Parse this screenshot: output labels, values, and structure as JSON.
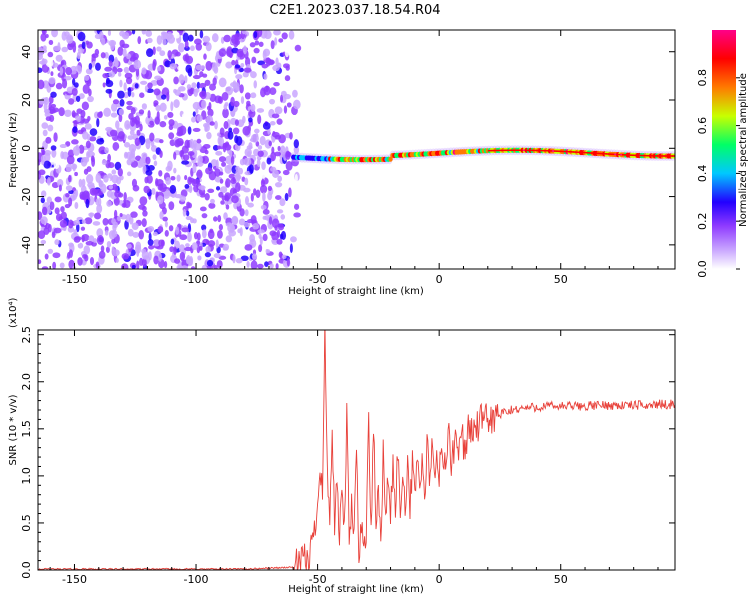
{
  "title": "C2E1.2023.037.18.54.R04",
  "chart_data": [
    {
      "type": "heatmap",
      "xlabel": "Height of straight line (km)",
      "ylabel": "Frequency (Hz)",
      "xlim": [
        -165,
        97
      ],
      "ylim": [
        -50,
        49
      ],
      "x_ticks": [
        -150,
        -100,
        -50,
        0,
        50
      ],
      "y_ticks": [
        -40,
        -20,
        0,
        20,
        40
      ],
      "colorbar": {
        "label": "Normalized spectral amplitude",
        "range": [
          0.0,
          1.0
        ],
        "ticks": [
          "0.0",
          "0.2",
          "0.4",
          "0.6",
          "0.8"
        ],
        "colors": [
          "#ffffff",
          "#c9a6ff",
          "#8f3bff",
          "#2200ff",
          "#00c8ff",
          "#00ff66",
          "#c8ff00",
          "#ff7a00",
          "#ff0000",
          "#ff0088"
        ]
      },
      "regions": [
        {
          "description": "broadband noise",
          "x_range": [
            -165,
            -62
          ],
          "freq_range": [
            -50,
            49
          ],
          "amplitude": [
            0.05,
            0.3
          ]
        },
        {
          "description": "narrow echo band",
          "x_range": [
            -60,
            97
          ],
          "freq_range": [
            -6,
            2
          ],
          "amplitude": [
            0.3,
            1.0
          ]
        }
      ]
    },
    {
      "type": "line",
      "xlabel": "Height of straight line (km)",
      "ylabel": "SNR (10 * v/v)",
      "y_multiplier": "(x10⁴)",
      "xlim": [
        -165,
        97
      ],
      "ylim": [
        0,
        2.55
      ],
      "x_ticks": [
        -150,
        -100,
        -50,
        0,
        50
      ],
      "y_ticks": [
        "0.0",
        "0.5",
        "1.0",
        "1.5",
        "2.0",
        "2.5"
      ],
      "series": [
        {
          "color": "#e8413a",
          "x": [
            -165,
            -120,
            -80,
            -60,
            -54,
            -52,
            -50,
            -49,
            -48,
            -47,
            -46,
            -45,
            -44,
            -43,
            -42,
            -41,
            -40,
            -39,
            -38,
            -37,
            -36,
            -35,
            -34,
            -33,
            -32,
            -31,
            -30,
            -29,
            -28,
            -27,
            -26,
            -25,
            -24,
            -23,
            -22,
            -21,
            -20,
            -19,
            -18,
            -17,
            -16,
            -15,
            -14,
            -13,
            -12,
            -11,
            -10,
            -9,
            -8,
            -7,
            -6,
            -5,
            -4,
            -3,
            -2,
            -1,
            0,
            1,
            2,
            3,
            4,
            5,
            6,
            7,
            8,
            9,
            10,
            11,
            12,
            13,
            14,
            15,
            16,
            17,
            18,
            19,
            20,
            21,
            22,
            23,
            24,
            25,
            26,
            27,
            28,
            29,
            30,
            32,
            34,
            36,
            38,
            40,
            45,
            50,
            55,
            60,
            65,
            70,
            75,
            80,
            85,
            90,
            95,
            97
          ],
          "y": [
            0.01,
            0.01,
            0.01,
            0.03,
            0.12,
            0.3,
            0.7,
            1.2,
            0.8,
            2.55,
            1.0,
            0.6,
            1.5,
            0.4,
            0.9,
            0.3,
            0.95,
            0.35,
            1.7,
            0.25,
            0.7,
            0.3,
            1.35,
            0.2,
            0.5,
            0.2,
            0.45,
            1.55,
            0.3,
            1.55,
            0.5,
            0.8,
            0.35,
            1.25,
            0.45,
            1.05,
            0.6,
            1.05,
            0.7,
            1.3,
            0.5,
            1.15,
            0.6,
            1.2,
            0.7,
            1.1,
            0.75,
            1.3,
            0.8,
            1.2,
            0.6,
            1.45,
            0.85,
            1.3,
            0.95,
            1.2,
            1.0,
            1.35,
            1.05,
            1.15,
            1.6,
            1.1,
            1.25,
            1.4,
            1.2,
            1.5,
            1.35,
            1.3,
            1.5,
            1.45,
            1.5,
            1.55,
            1.5,
            1.6,
            1.55,
            1.6,
            1.6,
            1.62,
            1.6,
            1.62,
            1.65,
            1.63,
            1.67,
            1.68,
            1.66,
            1.69,
            1.7,
            1.71,
            1.72,
            1.72,
            1.73,
            1.73,
            1.74,
            1.74,
            1.74,
            1.74,
            1.75,
            1.75,
            1.75,
            1.75,
            1.75,
            1.76,
            1.76,
            1.76
          ]
        }
      ]
    }
  ]
}
